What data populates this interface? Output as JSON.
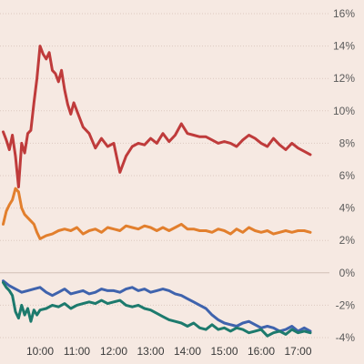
{
  "chart_data": {
    "type": "line",
    "grid": true,
    "y_axis_position": "right",
    "ylim": [
      -4,
      16
    ],
    "yticks": [
      {
        "value": 16,
        "label": "16%"
      },
      {
        "value": 14,
        "label": "14%"
      },
      {
        "value": 12,
        "label": "12%"
      },
      {
        "value": 10,
        "label": "10%"
      },
      {
        "value": 8,
        "label": "8%"
      },
      {
        "value": 6,
        "label": "6%"
      },
      {
        "value": 4,
        "label": "4%"
      },
      {
        "value": 2,
        "label": "2%"
      },
      {
        "value": 0,
        "label": "0%"
      },
      {
        "value": -2,
        "label": "-2%"
      },
      {
        "value": -4,
        "label": "-4%"
      }
    ],
    "xlim": [
      "09:00",
      "17:30"
    ],
    "xticks": [
      "10:00",
      "11:00",
      "12:00",
      "13:00",
      "14:00",
      "15:00",
      "16:00",
      "17:00"
    ],
    "series": [
      {
        "color": "#bf3b3b",
        "x": [
          "09:00",
          "09:05",
          "09:10",
          "09:15",
          "09:20",
          "09:25",
          "09:30",
          "09:35",
          "09:40",
          "09:45",
          "09:50",
          "09:55",
          "10:00",
          "10:05",
          "10:10",
          "10:15",
          "10:20",
          "10:25",
          "10:30",
          "10:35",
          "10:40",
          "10:45",
          "10:50",
          "10:55",
          "11:00",
          "11:10",
          "11:20",
          "11:30",
          "11:40",
          "11:50",
          "12:00",
          "12:10",
          "12:20",
          "12:30",
          "12:40",
          "12:50",
          "13:00",
          "13:10",
          "13:20",
          "13:30",
          "13:40",
          "13:50",
          "14:00",
          "14:10",
          "14:20",
          "14:30",
          "14:40",
          "14:50",
          "15:00",
          "15:10",
          "15:20",
          "15:30",
          "15:40",
          "15:50",
          "16:00",
          "16:10",
          "16:20",
          "16:30",
          "16:40",
          "16:50",
          "17:00",
          "17:10",
          "17:20"
        ],
        "y": [
          8.7,
          8.2,
          7.6,
          8.5,
          7.2,
          5.3,
          8.0,
          7.4,
          8.6,
          8.8,
          10.5,
          12.0,
          14.0,
          13.5,
          13.2,
          13.6,
          12.5,
          12.3,
          11.8,
          12.5,
          11.3,
          10.4,
          9.8,
          10.5,
          10.0,
          9.0,
          8.6,
          7.7,
          8.3,
          7.8,
          8.0,
          6.2,
          7.2,
          7.8,
          8.0,
          7.9,
          8.3,
          8.0,
          8.6,
          8.1,
          8.5,
          9.2,
          8.6,
          8.5,
          8.4,
          8.4,
          8.2,
          8.0,
          8.1,
          8.0,
          7.8,
          8.2,
          8.5,
          8.3,
          8.0,
          7.8,
          8.3,
          7.9,
          7.6,
          8.0,
          7.7,
          7.5,
          7.3
        ]
      },
      {
        "color": "#e27f2d",
        "x": [
          "09:00",
          "09:05",
          "09:10",
          "09:15",
          "09:20",
          "09:25",
          "09:30",
          "09:35",
          "09:40",
          "09:45",
          "09:50",
          "09:55",
          "10:00",
          "10:10",
          "10:20",
          "10:30",
          "10:40",
          "10:50",
          "11:00",
          "11:10",
          "11:20",
          "11:30",
          "11:40",
          "11:50",
          "12:00",
          "12:10",
          "12:20",
          "12:30",
          "12:40",
          "12:50",
          "13:00",
          "13:10",
          "13:20",
          "13:30",
          "13:40",
          "13:50",
          "14:00",
          "14:10",
          "14:20",
          "14:30",
          "14:40",
          "14:50",
          "15:00",
          "15:10",
          "15:20",
          "15:30",
          "15:40",
          "15:50",
          "16:00",
          "16:10",
          "16:20",
          "16:30",
          "16:40",
          "16:50",
          "17:00",
          "17:10",
          "17:20"
        ],
        "y": [
          3.0,
          3.8,
          4.2,
          4.5,
          5.2,
          5.0,
          4.0,
          3.6,
          3.4,
          3.2,
          3.0,
          2.5,
          2.1,
          2.3,
          2.4,
          2.6,
          2.7,
          2.6,
          2.8,
          2.4,
          2.6,
          2.7,
          2.5,
          2.8,
          2.7,
          2.6,
          2.9,
          2.8,
          2.7,
          2.9,
          2.8,
          2.6,
          2.8,
          2.6,
          2.8,
          3.0,
          2.7,
          2.7,
          2.6,
          2.6,
          2.5,
          2.7,
          2.6,
          2.4,
          2.7,
          2.5,
          2.8,
          2.6,
          2.5,
          2.6,
          2.4,
          2.5,
          2.6,
          2.5,
          2.6,
          2.6,
          2.5
        ]
      },
      {
        "color": "#3f63ad",
        "x": [
          "09:00",
          "09:10",
          "09:20",
          "09:30",
          "09:40",
          "09:50",
          "10:00",
          "10:10",
          "10:20",
          "10:30",
          "10:40",
          "10:50",
          "11:00",
          "11:10",
          "11:20",
          "11:30",
          "11:40",
          "11:50",
          "12:00",
          "12:10",
          "12:20",
          "12:30",
          "12:40",
          "12:50",
          "13:00",
          "13:10",
          "13:20",
          "13:30",
          "13:40",
          "13:50",
          "14:00",
          "14:10",
          "14:20",
          "14:30",
          "14:40",
          "14:50",
          "15:00",
          "15:10",
          "15:20",
          "15:30",
          "15:40",
          "15:50",
          "16:00",
          "16:10",
          "16:20",
          "16:30",
          "16:40",
          "16:50",
          "17:00",
          "17:10",
          "17:20"
        ],
        "y": [
          -0.5,
          -0.8,
          -1.0,
          -1.2,
          -1.1,
          -1.0,
          -0.9,
          -1.2,
          -1.4,
          -1.2,
          -1.0,
          -1.3,
          -1.2,
          -1.1,
          -1.3,
          -1.2,
          -1.0,
          -1.1,
          -1.1,
          -1.2,
          -1.0,
          -0.9,
          -1.1,
          -1.0,
          -1.2,
          -1.1,
          -1.0,
          -1.1,
          -1.3,
          -1.4,
          -1.6,
          -1.8,
          -2.0,
          -2.2,
          -2.6,
          -2.9,
          -3.1,
          -3.2,
          -3.3,
          -3.1,
          -3.0,
          -3.2,
          -3.4,
          -3.3,
          -3.4,
          -3.6,
          -3.5,
          -3.3,
          -3.6,
          -3.4,
          -3.6
        ]
      },
      {
        "color": "#1d7a6d",
        "x": [
          "09:00",
          "09:05",
          "09:10",
          "09:15",
          "09:20",
          "09:25",
          "09:30",
          "09:35",
          "09:40",
          "09:45",
          "09:50",
          "09:55",
          "10:00",
          "10:10",
          "10:20",
          "10:30",
          "10:40",
          "10:50",
          "11:00",
          "11:10",
          "11:20",
          "11:30",
          "11:40",
          "11:50",
          "12:00",
          "12:10",
          "12:20",
          "12:30",
          "12:40",
          "12:50",
          "13:00",
          "13:10",
          "13:20",
          "13:30",
          "13:40",
          "13:50",
          "14:00",
          "14:10",
          "14:20",
          "14:30",
          "14:40",
          "14:50",
          "15:00",
          "15:10",
          "15:20",
          "15:30",
          "15:40",
          "15:50",
          "16:00",
          "16:10",
          "16:20",
          "16:30",
          "16:40",
          "16:50",
          "17:00",
          "17:10",
          "17:20"
        ],
        "y": [
          -0.6,
          -0.9,
          -1.1,
          -1.4,
          -2.4,
          -2.8,
          -2.0,
          -2.6,
          -2.2,
          -3.0,
          -2.3,
          -2.6,
          -2.3,
          -2.2,
          -2.0,
          -2.1,
          -1.9,
          -2.2,
          -2.0,
          -1.9,
          -1.8,
          -1.9,
          -1.7,
          -1.9,
          -1.8,
          -1.7,
          -2.0,
          -2.1,
          -2.0,
          -2.2,
          -2.3,
          -2.5,
          -2.7,
          -2.9,
          -3.0,
          -3.1,
          -3.3,
          -3.1,
          -3.4,
          -3.5,
          -3.2,
          -3.5,
          -3.4,
          -3.6,
          -3.4,
          -3.5,
          -3.7,
          -3.6,
          -3.5,
          -3.9,
          -3.7,
          -3.6,
          -3.8,
          -3.5,
          -3.7,
          -3.6,
          -3.7
        ]
      }
    ]
  }
}
